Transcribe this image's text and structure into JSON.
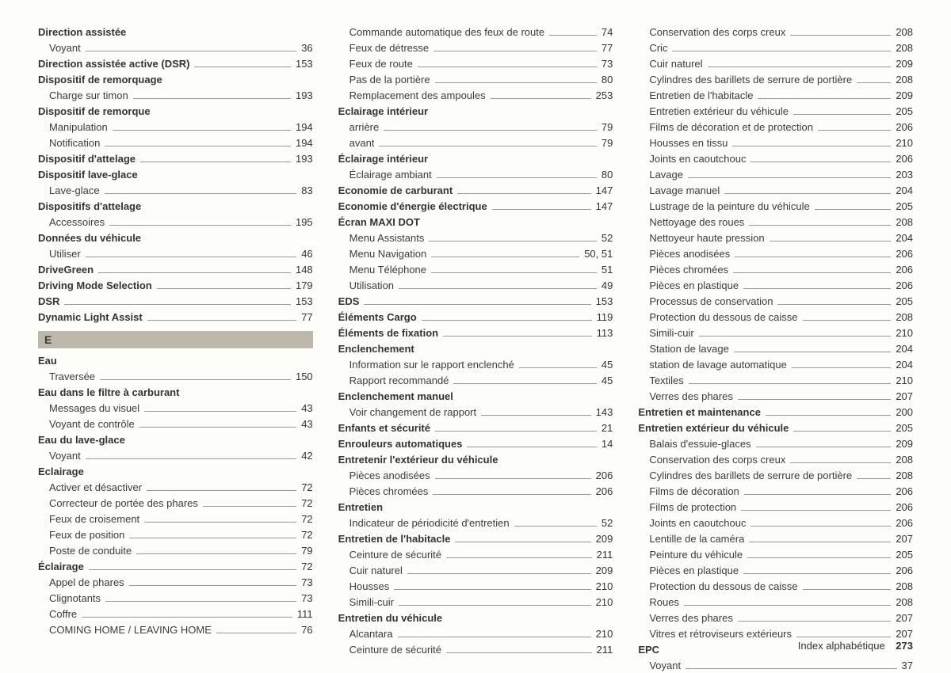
{
  "footer": {
    "label": "Index alphabétique",
    "page": "273"
  },
  "letterHeader": "E",
  "columns": [
    [
      {
        "t": "h",
        "label": "Direction assistée"
      },
      {
        "t": "s",
        "label": "Voyant",
        "page": "36"
      },
      {
        "t": "hr",
        "label": "Direction assistée active (DSR)",
        "page": "153"
      },
      {
        "t": "h",
        "label": "Dispositif de remorquage"
      },
      {
        "t": "s",
        "label": "Charge sur timon",
        "page": "193"
      },
      {
        "t": "h",
        "label": "Dispositif de remorque"
      },
      {
        "t": "s",
        "label": "Manipulation",
        "page": "194"
      },
      {
        "t": "s",
        "label": "Notification",
        "page": "194"
      },
      {
        "t": "hr",
        "label": "Dispositif d'attelage",
        "page": "193"
      },
      {
        "t": "h",
        "label": "Dispositif lave-glace"
      },
      {
        "t": "s",
        "label": "Lave-glace",
        "page": "83"
      },
      {
        "t": "h",
        "label": "Dispositifs d'attelage"
      },
      {
        "t": "s",
        "label": "Accessoires",
        "page": "195"
      },
      {
        "t": "h",
        "label": "Données du véhicule"
      },
      {
        "t": "s",
        "label": "Utiliser",
        "page": "46"
      },
      {
        "t": "hr",
        "label": "DriveGreen",
        "page": "148"
      },
      {
        "t": "hr",
        "label": "Driving Mode Selection",
        "page": "179"
      },
      {
        "t": "hr",
        "label": "DSR",
        "page": "153"
      },
      {
        "t": "hr",
        "label": "Dynamic Light Assist",
        "page": "77"
      },
      {
        "t": "letter"
      },
      {
        "t": "h",
        "label": "Eau"
      },
      {
        "t": "s",
        "label": "Traversée",
        "page": "150"
      },
      {
        "t": "h",
        "label": "Eau dans le filtre à carburant"
      },
      {
        "t": "s",
        "label": "Messages du visuel",
        "page": "43"
      },
      {
        "t": "s",
        "label": "Voyant de contrôle",
        "page": "43"
      },
      {
        "t": "h",
        "label": "Eau du lave-glace"
      },
      {
        "t": "s",
        "label": "Voyant",
        "page": "42"
      },
      {
        "t": "h",
        "label": "Eclairage"
      },
      {
        "t": "s",
        "label": "Activer et désactiver",
        "page": "72"
      },
      {
        "t": "s",
        "label": "Correcteur de portée des phares",
        "page": "72"
      },
      {
        "t": "s",
        "label": "Feux de croisement",
        "page": "72"
      },
      {
        "t": "s",
        "label": "Feux de position",
        "page": "72"
      },
      {
        "t": "s",
        "label": "Poste de conduite",
        "page": "79"
      },
      {
        "t": "hr",
        "label": "Éclairage",
        "page": "72"
      },
      {
        "t": "s",
        "label": "Appel de phares",
        "page": "73"
      },
      {
        "t": "s",
        "label": "Clignotants",
        "page": "73"
      },
      {
        "t": "s",
        "label": "Coffre",
        "page": "111"
      },
      {
        "t": "s",
        "label": "COMING HOME / LEAVING HOME",
        "page": "76"
      }
    ],
    [
      {
        "t": "s",
        "label": "Commande automatique des feux de route",
        "page": "74"
      },
      {
        "t": "s",
        "label": "Feux de détresse",
        "page": "77"
      },
      {
        "t": "s",
        "label": "Feux de route",
        "page": "73"
      },
      {
        "t": "s",
        "label": "Pas de la portière",
        "page": "80"
      },
      {
        "t": "s",
        "label": "Remplacement des ampoules",
        "page": "253"
      },
      {
        "t": "h",
        "label": "Eclairage intérieur"
      },
      {
        "t": "s",
        "label": "arrière",
        "page": "79"
      },
      {
        "t": "s",
        "label": "avant",
        "page": "79"
      },
      {
        "t": "h",
        "label": "Éclairage intérieur"
      },
      {
        "t": "s",
        "label": "Éclairage ambiant",
        "page": "80"
      },
      {
        "t": "hr",
        "label": "Economie de carburant",
        "page": "147"
      },
      {
        "t": "hr",
        "label": "Economie d'énergie électrique",
        "page": "147"
      },
      {
        "t": "h",
        "label": "Écran MAXI DOT"
      },
      {
        "t": "s",
        "label": "Menu Assistants",
        "page": "52"
      },
      {
        "t": "s",
        "label": "Menu Navigation",
        "page": "50, 51"
      },
      {
        "t": "s",
        "label": "Menu Téléphone",
        "page": "51"
      },
      {
        "t": "s",
        "label": "Utilisation",
        "page": "49"
      },
      {
        "t": "hr",
        "label": "EDS",
        "page": "153"
      },
      {
        "t": "hr",
        "label": "Éléments Cargo",
        "page": "119"
      },
      {
        "t": "hr",
        "label": "Éléments de fixation",
        "page": "113"
      },
      {
        "t": "h",
        "label": "Enclenchement"
      },
      {
        "t": "s",
        "label": "Information sur le rapport enclenché",
        "page": "45"
      },
      {
        "t": "s",
        "label": "Rapport recommandé",
        "page": "45"
      },
      {
        "t": "h",
        "label": "Enclenchement manuel"
      },
      {
        "t": "s",
        "label": "Voir changement de rapport",
        "page": "143"
      },
      {
        "t": "hr",
        "label": "Enfants et sécurité",
        "page": "21"
      },
      {
        "t": "hr",
        "label": "Enrouleurs automatiques",
        "page": "14"
      },
      {
        "t": "h",
        "label": "Entretenir l'extérieur du véhicule"
      },
      {
        "t": "s",
        "label": "Pièces anodisées",
        "page": "206"
      },
      {
        "t": "s",
        "label": "Pièces chromées",
        "page": "206"
      },
      {
        "t": "h",
        "label": "Entretien"
      },
      {
        "t": "s",
        "label": "Indicateur de périodicité d'entretien",
        "page": "52"
      },
      {
        "t": "hr",
        "label": "Entretien de l'habitacle",
        "page": "209"
      },
      {
        "t": "s",
        "label": "Ceinture de sécurité",
        "page": "211"
      },
      {
        "t": "s",
        "label": "Cuir naturel",
        "page": "209"
      },
      {
        "t": "s",
        "label": "Housses",
        "page": "210"
      },
      {
        "t": "s",
        "label": "Simili-cuir",
        "page": "210"
      },
      {
        "t": "h",
        "label": "Entretien du véhicule"
      },
      {
        "t": "s",
        "label": "Alcantara",
        "page": "210"
      },
      {
        "t": "s",
        "label": "Ceinture de sécurité",
        "page": "211"
      }
    ],
    [
      {
        "t": "s",
        "label": "Conservation des corps creux",
        "page": "208"
      },
      {
        "t": "s",
        "label": "Cric",
        "page": "208"
      },
      {
        "t": "s",
        "label": "Cuir naturel",
        "page": "209"
      },
      {
        "t": "s",
        "label": "Cylindres des barillets de serrure de portière",
        "page": "208"
      },
      {
        "t": "s",
        "label": "Entretien de l'habitacle",
        "page": "209"
      },
      {
        "t": "s",
        "label": "Entretien extérieur du véhicule",
        "page": "205"
      },
      {
        "t": "s",
        "label": "Films de décoration et de protection",
        "page": "206"
      },
      {
        "t": "s",
        "label": "Housses en tissu",
        "page": "210"
      },
      {
        "t": "s",
        "label": "Joints en caoutchouc",
        "page": "206"
      },
      {
        "t": "s",
        "label": "Lavage",
        "page": "203"
      },
      {
        "t": "s",
        "label": "Lavage manuel",
        "page": "204"
      },
      {
        "t": "s",
        "label": "Lustrage de la peinture du véhicule",
        "page": "205"
      },
      {
        "t": "s",
        "label": "Nettoyage des roues",
        "page": "208"
      },
      {
        "t": "s",
        "label": "Nettoyeur haute pression",
        "page": "204"
      },
      {
        "t": "s",
        "label": "Pièces anodisées",
        "page": "206"
      },
      {
        "t": "s",
        "label": "Pièces chromées",
        "page": "206"
      },
      {
        "t": "s",
        "label": "Pièces en plastique",
        "page": "206"
      },
      {
        "t": "s",
        "label": "Processus de conservation",
        "page": "205"
      },
      {
        "t": "s",
        "label": "Protection du dessous de caisse",
        "page": "208"
      },
      {
        "t": "s",
        "label": "Simili-cuir",
        "page": "210"
      },
      {
        "t": "s",
        "label": "Station de lavage",
        "page": "204"
      },
      {
        "t": "s",
        "label": "station de lavage automatique",
        "page": "204"
      },
      {
        "t": "s",
        "label": "Textiles",
        "page": "210"
      },
      {
        "t": "s",
        "label": "Verres des phares",
        "page": "207"
      },
      {
        "t": "hr",
        "label": "Entretien et maintenance",
        "page": "200"
      },
      {
        "t": "hr",
        "label": "Entretien extérieur du véhicule",
        "page": "205"
      },
      {
        "t": "s",
        "label": "Balais d'essuie-glaces",
        "page": "209"
      },
      {
        "t": "s",
        "label": "Conservation des corps creux",
        "page": "208"
      },
      {
        "t": "s",
        "label": "Cylindres des barillets de serrure de portière",
        "page": "208"
      },
      {
        "t": "s",
        "label": "Films de décoration",
        "page": "206"
      },
      {
        "t": "s",
        "label": "Films de protection",
        "page": "206"
      },
      {
        "t": "s",
        "label": "Joints en caoutchouc",
        "page": "206"
      },
      {
        "t": "s",
        "label": "Lentille de la caméra",
        "page": "207"
      },
      {
        "t": "s",
        "label": "Peinture du véhicule",
        "page": "205"
      },
      {
        "t": "s",
        "label": "Pièces en plastique",
        "page": "206"
      },
      {
        "t": "s",
        "label": "Protection du dessous de caisse",
        "page": "208"
      },
      {
        "t": "s",
        "label": "Roues",
        "page": "208"
      },
      {
        "t": "s",
        "label": "Verres des phares",
        "page": "207"
      },
      {
        "t": "s",
        "label": "Vitres et rétroviseurs extérieurs",
        "page": "207"
      },
      {
        "t": "h",
        "label": "EPC"
      },
      {
        "t": "s",
        "label": "Voyant",
        "page": "37"
      }
    ]
  ]
}
